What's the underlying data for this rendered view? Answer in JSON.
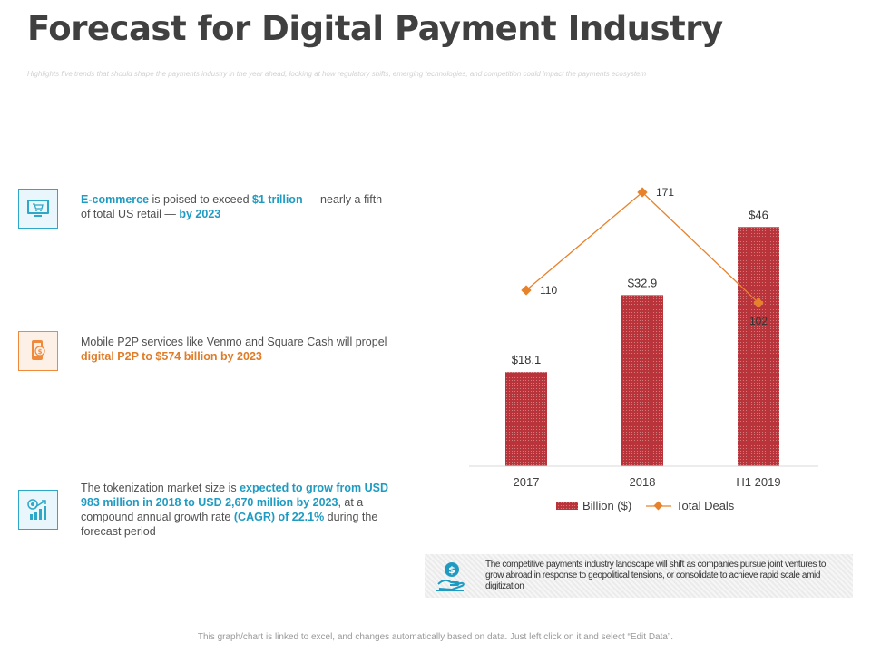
{
  "title": "Forecast for Digital Payment Industry",
  "subtitle": "Highlights five trends that should shape the payments industry in the year ahead, looking at how regulatory shifts, emerging technologies, and competition could impact the payments ecosystem",
  "points": [
    {
      "icon": "shopping-cart-screen-icon",
      "hl1": "E-commerce",
      "t1": " is poised to exceed ",
      "hl2": "$1 trillion",
      "t2": " — nearly a fifth of total US retail — ",
      "hl3": "by 2023"
    },
    {
      "icon": "mobile-payment-icon",
      "t1": "Mobile P2P services like Venmo and Square Cash will propel ",
      "hl1": "digital P2P to $574 billion by 2023"
    },
    {
      "icon": "growth-chart-icon",
      "t1": "The tokenization market size is ",
      "hl1": "expected to grow from USD 983 million in 2018 to USD 2,670 million by 2023",
      "t2": ", at a compound annual growth rate ",
      "hl2": "(CAGR) of 22.1%",
      "t3": " during the forecast period"
    }
  ],
  "chart_data": {
    "type": "bar",
    "categories": [
      "2017",
      "2018",
      "H1 2019"
    ],
    "series": [
      {
        "name": "Billion ($)",
        "type": "bar",
        "values": [
          18.1,
          32.9,
          46
        ],
        "labels": [
          "$18.1",
          "$32.9",
          "$46"
        ],
        "color": "#b8343a"
      },
      {
        "name": "Total Deals",
        "type": "line",
        "values": [
          110,
          171,
          102
        ],
        "labels": [
          "110",
          "171",
          "102"
        ],
        "color": "#e8822a"
      }
    ],
    "ylim_bar": [
      0,
      50
    ],
    "ylim_line": [
      0,
      200
    ]
  },
  "callout": {
    "icon": "hand-dollar-icon",
    "text": "The competitive payments industry landscape will shift as companies pursue joint ventures to grow abroad in response to geopolitical tensions, or consolidate to achieve rapid scale amid digitization"
  },
  "footer": "This graph/chart is linked to excel, and changes automatically based on data. Just left click on it and select “Edit Data”."
}
